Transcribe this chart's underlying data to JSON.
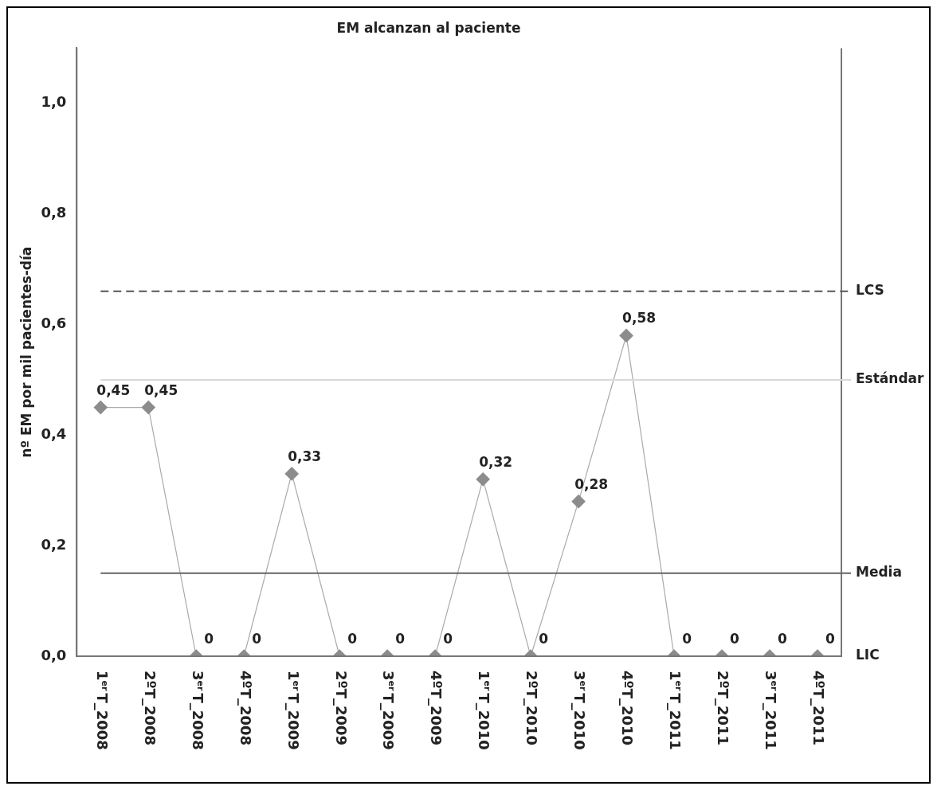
{
  "chart_data": {
    "type": "line",
    "title": "EM alcanzan al paciente",
    "ylabel": "nº EM por mil pacientes-día",
    "categories": [
      "1$^{er}$T_2008",
      "2ºT_2008",
      "3$^{er}$T_2008",
      "4ºT_2008",
      "1$^{er}$T_2009",
      "2ºT_2009",
      "3$^{er}$T_2009",
      "4ºT_2009",
      "1$^{er}$T_2010",
      "2ºT_2010",
      "3$^{er}$T_2010",
      "4ºT_2010",
      "1$^{er}$T_2011",
      "2ºT_2011",
      "3$^{er}$T_2011",
      "4ºT_2011"
    ],
    "series": [
      {
        "color": "#8c8c8c",
        "values": [
          0.45,
          0.45,
          0,
          0,
          0.33,
          0,
          0,
          0,
          0.32,
          0,
          0.28,
          0.58,
          0,
          0,
          0,
          0
        ],
        "value_labels": [
          "0,45",
          "0,45",
          "0",
          "0",
          "0,33",
          "0",
          "0",
          "0",
          "0,32",
          "0",
          "0,28",
          "0,58",
          "0",
          "0",
          "0",
          "0"
        ]
      }
    ],
    "ylim": [
      0,
      1.1
    ],
    "yticks": [
      {
        "value": 0,
        "label": "0,0"
      },
      {
        "value": 0.2,
        "label": "0,2"
      },
      {
        "value": 0.4,
        "label": "0,4"
      },
      {
        "value": 0.6,
        "label": "0,6"
      },
      {
        "value": 0.8,
        "label": "0,8"
      },
      {
        "value": 1,
        "label": "1,0"
      }
    ],
    "ref_lines": [
      {
        "axis": "y",
        "value": 0.66,
        "label": "LCS",
        "color": "#555555",
        "line_style": "dashed"
      },
      {
        "axis": "y",
        "value": 0.5,
        "label": "Estándar",
        "color": "#d9d9d9",
        "line_style": "solid"
      },
      {
        "axis": "y",
        "value": 0.15,
        "label": "Media",
        "color": "#666666",
        "line_style": "solid"
      }
    ],
    "annotations": [
      "LIC"
    ],
    "marker": "diamond",
    "line_style": "solid",
    "grid": false,
    "legend": false
  }
}
